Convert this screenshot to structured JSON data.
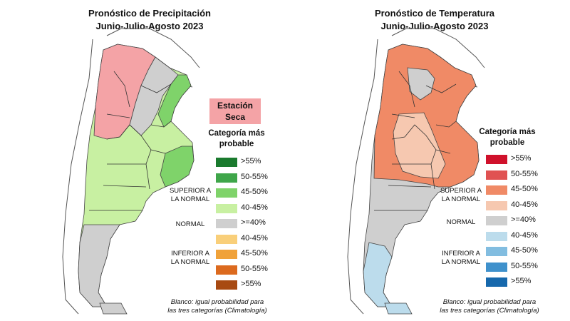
{
  "panels": [
    {
      "title_line1": "Pronóstico de Precipitación",
      "title_line2": "Junio-Julio-Agosto 2023",
      "dry_label_line1": "Estación",
      "dry_label_line2": "Seca",
      "legend_title_line1": "Categoría más",
      "legend_title_line2": "probable",
      "swatches": [
        {
          "label": ">55%",
          "color": "#1a7a2e"
        },
        {
          "label": "50-55%",
          "color": "#3fa64a"
        },
        {
          "label": "45-50%",
          "color": "#7fd36a"
        },
        {
          "label": "40-45%",
          "color": "#c8f0a2"
        },
        {
          "label": ">=40%",
          "color": "#cfcfcf"
        },
        {
          "label": "40-45%",
          "color": "#f9cf7a"
        },
        {
          "label": "45-50%",
          "color": "#f0a23a"
        },
        {
          "label": "50-55%",
          "color": "#dc6a1e"
        },
        {
          "label": ">55%",
          "color": "#a84a12"
        }
      ],
      "category_labels": {
        "superior_line1": "SUPERIOR A",
        "superior_line2": "LA NORMAL",
        "normal": "NORMAL",
        "inferior_line1": "INFERIOR A",
        "inferior_line2": "LA NORMAL"
      },
      "note_line1": "Blanco: igual probabilidad para",
      "note_line2": "las tres categorías (Climatología)",
      "map_colors": {
        "north": "#f4a3a6",
        "main": "#c8f0a2",
        "strong": "#7fd36a",
        "normal": "#cfcfcf",
        "south": "#cfcfcf"
      }
    },
    {
      "title_line1": "Pronóstico de Temperatura",
      "title_line2": "Junio-Julio-Agosto 2023",
      "legend_title_line1": "Categoría más",
      "legend_title_line2": "probable",
      "swatches": [
        {
          "label": ">55%",
          "color": "#d0112b"
        },
        {
          "label": "50-55%",
          "color": "#e05252"
        },
        {
          "label": "45-50%",
          "color": "#f08a66"
        },
        {
          "label": "40-45%",
          "color": "#f6c8b0"
        },
        {
          "label": ">=40%",
          "color": "#cfcfcf"
        },
        {
          "label": "40-45%",
          "color": "#bcdcec"
        },
        {
          "label": "45-50%",
          "color": "#82bde0"
        },
        {
          "label": "50-55%",
          "color": "#3f91cc"
        },
        {
          "label": ">55%",
          "color": "#1668ac"
        }
      ],
      "category_labels": {
        "superior_line1": "SUPERIOR A",
        "superior_line2": "LA NORMAL",
        "normal": "NORMAL",
        "inferior_line1": "INFERIOR A",
        "inferior_line2": "LA NORMAL"
      },
      "note_line1": "Blanco: igual probabilidad para",
      "note_line2": "las tres categorías (Climatología)",
      "map_colors": {
        "north": "#f08a66",
        "main": "#f6c8b0",
        "strong": "#f08a66",
        "normal": "#cfcfcf",
        "south": "#bcdcec"
      }
    }
  ]
}
